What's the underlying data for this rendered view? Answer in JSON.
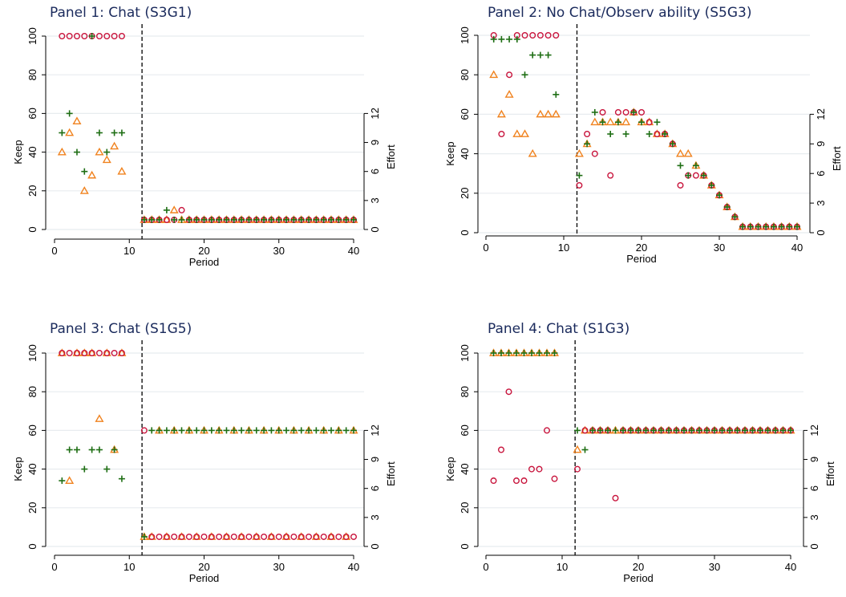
{
  "chart_data": [
    {
      "type": "scatter",
      "title": "Panel 1: Chat (S3G1)",
      "xlabel": "Period",
      "ylabel_left": "Keep",
      "ylabel_right": "Effort",
      "xlim": [
        0,
        40
      ],
      "ylim_left": [
        0,
        100
      ],
      "ylim_right": [
        0,
        12
      ],
      "x_ticks": [
        0,
        10,
        20,
        30,
        40
      ],
      "y_ticks_left": [
        0,
        20,
        40,
        60,
        80,
        100
      ],
      "y_ticks_right": [
        0,
        3,
        6,
        9,
        12
      ],
      "grid": true,
      "vline_x": 11.7,
      "series": [
        {
          "marker": "circle",
          "color": "#c8143c",
          "x": [
            1,
            2,
            3,
            4,
            5,
            6,
            7,
            8,
            9,
            12,
            13,
            14,
            15,
            16,
            17,
            18,
            19,
            20,
            21,
            22,
            23,
            24,
            25,
            26,
            27,
            28,
            29,
            30,
            31,
            32,
            33,
            34,
            35,
            36,
            37,
            38,
            39,
            40
          ],
          "y": [
            100,
            100,
            100,
            100,
            100,
            100,
            100,
            100,
            100,
            5,
            5,
            5,
            5,
            5,
            10,
            5,
            5,
            5,
            5,
            5,
            5,
            5,
            5,
            5,
            5,
            5,
            5,
            5,
            5,
            5,
            5,
            5,
            5,
            5,
            5,
            5,
            5,
            5
          ]
        },
        {
          "marker": "plus",
          "color": "#1e6e14",
          "x": [
            1,
            2,
            3,
            4,
            5,
            6,
            7,
            8,
            9,
            12,
            13,
            14,
            15,
            16,
            17,
            18,
            19,
            20,
            21,
            22,
            23,
            24,
            25,
            26,
            27,
            28,
            29,
            30,
            31,
            32,
            33,
            34,
            35,
            36,
            37,
            38,
            39,
            40
          ],
          "y": [
            50,
            60,
            40,
            30,
            100,
            50,
            40,
            50,
            50,
            5,
            5,
            5,
            10,
            5,
            5,
            5,
            5,
            5,
            5,
            5,
            5,
            5,
            5,
            5,
            5,
            5,
            5,
            5,
            5,
            5,
            5,
            5,
            5,
            5,
            5,
            5,
            5,
            5
          ]
        },
        {
          "marker": "triangle",
          "color": "#f0821e",
          "x": [
            1,
            2,
            3,
            4,
            5,
            6,
            7,
            8,
            9,
            12,
            13,
            14,
            15,
            16,
            17,
            18,
            19,
            20,
            21,
            22,
            23,
            24,
            25,
            26,
            27,
            28,
            29,
            30,
            31,
            32,
            33,
            34,
            35,
            36,
            37,
            38,
            39,
            40
          ],
          "y": [
            40,
            50,
            56,
            20,
            28,
            40,
            36,
            43,
            30,
            5,
            5,
            5,
            5,
            10,
            5,
            5,
            5,
            5,
            5,
            5,
            5,
            5,
            5,
            5,
            5,
            5,
            5,
            5,
            5,
            5,
            5,
            5,
            5,
            5,
            5,
            5,
            5,
            5
          ]
        }
      ]
    },
    {
      "type": "scatter",
      "title": "Panel 2: No Chat/Observ ability  (S5G3)",
      "xlabel": "Period",
      "ylabel_left": "Keep",
      "ylabel_right": "Effort",
      "xlim": [
        0,
        40
      ],
      "ylim_left": [
        0,
        100
      ],
      "ylim_right": [
        0,
        12
      ],
      "x_ticks": [
        0,
        10,
        20,
        30,
        40
      ],
      "y_ticks_left": [
        0,
        20,
        40,
        60,
        80,
        100
      ],
      "y_ticks_right": [
        0,
        3,
        6,
        9,
        12
      ],
      "grid": true,
      "vline_x": 11.7,
      "series": [
        {
          "marker": "circle",
          "color": "#c8143c",
          "x": [
            1,
            2,
            3,
            4,
            5,
            6,
            7,
            8,
            9,
            12,
            13,
            14,
            15,
            16,
            17,
            18,
            19,
            20,
            21,
            22,
            23,
            24,
            25,
            26,
            27,
            28,
            29,
            30,
            31,
            32,
            33,
            34,
            35,
            36,
            37,
            38,
            39,
            40
          ],
          "y": [
            100,
            50,
            80,
            100,
            100,
            100,
            100,
            100,
            100,
            24,
            50,
            40,
            61,
            29,
            61,
            61,
            61,
            61,
            56,
            50,
            50,
            45,
            24,
            29,
            29,
            29,
            24,
            19,
            13,
            8,
            3,
            3,
            3,
            3,
            3,
            3,
            3,
            3
          ]
        },
        {
          "marker": "plus",
          "color": "#1e6e14",
          "x": [
            1,
            2,
            3,
            4,
            5,
            6,
            7,
            8,
            9,
            12,
            13,
            14,
            15,
            16,
            17,
            18,
            19,
            20,
            21,
            22,
            23,
            24,
            25,
            26,
            27,
            28,
            29,
            30,
            31,
            32,
            33,
            34,
            35,
            36,
            37,
            38,
            39,
            40
          ],
          "y": [
            98,
            98,
            98,
            98,
            80,
            90,
            90,
            90,
            70,
            29,
            45,
            61,
            56,
            50,
            56,
            50,
            61,
            56,
            50,
            56,
            50,
            45,
            34,
            29,
            34,
            29,
            24,
            19,
            13,
            8,
            3,
            3,
            3,
            3,
            3,
            3,
            3,
            3
          ]
        },
        {
          "marker": "triangle",
          "color": "#f0821e",
          "x": [
            1,
            2,
            3,
            4,
            5,
            6,
            7,
            8,
            9,
            12,
            13,
            14,
            15,
            16,
            17,
            18,
            19,
            20,
            21,
            22,
            23,
            24,
            25,
            26,
            27,
            28,
            29,
            30,
            31,
            32,
            33,
            34,
            35,
            36,
            37,
            38,
            39,
            40
          ],
          "y": [
            80,
            60,
            70,
            50,
            50,
            40,
            60,
            60,
            60,
            40,
            45,
            56,
            56,
            56,
            56,
            56,
            61,
            56,
            56,
            50,
            50,
            45,
            40,
            40,
            34,
            29,
            24,
            19,
            13,
            8,
            3,
            3,
            3,
            3,
            3,
            3,
            3,
            3
          ]
        }
      ]
    },
    {
      "type": "scatter",
      "title": "Panel 3: Chat (S1G5)",
      "xlabel": "Period",
      "ylabel_left": "Keep",
      "ylabel_right": "Effort",
      "xlim": [
        0,
        40
      ],
      "ylim_left": [
        0,
        100
      ],
      "ylim_right": [
        0,
        12
      ],
      "x_ticks": [
        0,
        10,
        20,
        30,
        40
      ],
      "y_ticks_left": [
        0,
        20,
        40,
        60,
        80,
        100
      ],
      "y_ticks_right": [
        0,
        3,
        6,
        9,
        12
      ],
      "grid": true,
      "vline_x": 11.7,
      "series": [
        {
          "marker": "circle",
          "color": "#c8143c",
          "x": [
            1,
            2,
            3,
            4,
            5,
            6,
            7,
            8,
            9,
            12,
            13,
            14,
            15,
            16,
            17,
            18,
            19,
            20,
            21,
            22,
            23,
            24,
            25,
            26,
            27,
            28,
            29,
            30,
            31,
            32,
            33,
            34,
            35,
            36,
            37,
            38,
            39,
            40
          ],
          "y": [
            100,
            100,
            100,
            100,
            100,
            100,
            100,
            100,
            100,
            60,
            5,
            5,
            5,
            5,
            5,
            5,
            5,
            5,
            5,
            5,
            5,
            5,
            5,
            5,
            5,
            5,
            5,
            5,
            5,
            5,
            5,
            5,
            5,
            5,
            5,
            5,
            5,
            5
          ]
        },
        {
          "marker": "plus",
          "color": "#1e6e14",
          "x": [
            1,
            2,
            3,
            4,
            5,
            6,
            7,
            8,
            9,
            12,
            13,
            14,
            15,
            16,
            17,
            18,
            19,
            20,
            21,
            22,
            23,
            24,
            25,
            26,
            27,
            28,
            29,
            30,
            31,
            32,
            33,
            34,
            35,
            36,
            37,
            38,
            39,
            40
          ],
          "y": [
            34,
            50,
            50,
            40,
            50,
            50,
            40,
            50,
            35,
            5,
            60,
            60,
            60,
            60,
            60,
            60,
            60,
            60,
            60,
            60,
            60,
            60,
            60,
            60,
            60,
            60,
            60,
            60,
            60,
            60,
            60,
            60,
            60,
            60,
            60,
            60,
            60,
            60
          ]
        },
        {
          "marker": "triangle",
          "color": "#f0821e",
          "x": [
            1,
            2,
            3,
            4,
            5,
            6,
            7,
            8,
            9,
            12,
            13,
            14,
            15,
            16,
            17,
            18,
            19,
            20,
            21,
            22,
            23,
            24,
            25,
            26,
            27,
            28,
            29,
            30,
            31,
            32,
            33,
            34,
            35,
            36,
            37,
            38,
            39,
            40
          ],
          "y": [
            100,
            34,
            100,
            100,
            100,
            66,
            100,
            50,
            100,
            5,
            5,
            60,
            5,
            60,
            5,
            60,
            5,
            60,
            5,
            60,
            5,
            60,
            5,
            60,
            5,
            60,
            5,
            60,
            5,
            60,
            5,
            60,
            5,
            60,
            5,
            60,
            5,
            60
          ]
        }
      ]
    },
    {
      "type": "scatter",
      "title": "Panel 4:  Chat (S1G3)",
      "xlabel": "Period",
      "ylabel_left": "Keep",
      "ylabel_right": "Effort",
      "xlim": [
        0,
        40
      ],
      "ylim_left": [
        0,
        100
      ],
      "ylim_right": [
        0,
        12
      ],
      "x_ticks": [
        0,
        10,
        20,
        30,
        40
      ],
      "y_ticks_left": [
        0,
        20,
        40,
        60,
        80,
        100
      ],
      "y_ticks_right": [
        0,
        3,
        6,
        9,
        12
      ],
      "grid": true,
      "vline_x": 11.7,
      "series": [
        {
          "marker": "circle",
          "color": "#c8143c",
          "x": [
            1,
            2,
            3,
            4,
            5,
            6,
            7,
            8,
            9,
            12,
            13,
            14,
            15,
            16,
            17,
            18,
            19,
            20,
            21,
            22,
            23,
            24,
            25,
            26,
            27,
            28,
            29,
            30,
            31,
            32,
            33,
            34,
            35,
            36,
            37,
            38,
            39,
            40
          ],
          "y": [
            34,
            50,
            80,
            34,
            34,
            40,
            40,
            60,
            35,
            40,
            60,
            60,
            60,
            60,
            25,
            60,
            60,
            60,
            60,
            60,
            60,
            60,
            60,
            60,
            60,
            60,
            60,
            60,
            60,
            60,
            60,
            60,
            60,
            60,
            60,
            60,
            60,
            60
          ]
        },
        {
          "marker": "plus",
          "color": "#1e6e14",
          "x": [
            1,
            2,
            3,
            4,
            5,
            6,
            7,
            8,
            9,
            12,
            13,
            14,
            15,
            16,
            17,
            18,
            19,
            20,
            21,
            22,
            23,
            24,
            25,
            26,
            27,
            28,
            29,
            30,
            31,
            32,
            33,
            34,
            35,
            36,
            37,
            38,
            39,
            40
          ],
          "y": [
            100,
            100,
            100,
            100,
            100,
            100,
            100,
            100,
            100,
            60,
            50,
            60,
            60,
            60,
            60,
            60,
            60,
            60,
            60,
            60,
            60,
            60,
            60,
            60,
            60,
            60,
            60,
            60,
            60,
            60,
            60,
            60,
            60,
            60,
            60,
            60,
            60,
            60
          ]
        },
        {
          "marker": "triangle",
          "color": "#f0821e",
          "x": [
            1,
            2,
            3,
            4,
            5,
            6,
            7,
            8,
            9,
            12,
            13,
            14,
            15,
            16,
            17,
            18,
            19,
            20,
            21,
            22,
            23,
            24,
            25,
            26,
            27,
            28,
            29,
            30,
            31,
            32,
            33,
            34,
            35,
            36,
            37,
            38,
            39,
            40
          ],
          "y": [
            100,
            100,
            100,
            100,
            100,
            100,
            100,
            100,
            100,
            50,
            60,
            60,
            60,
            60,
            60,
            60,
            60,
            60,
            60,
            60,
            60,
            60,
            60,
            60,
            60,
            60,
            60,
            60,
            60,
            60,
            60,
            60,
            60,
            60,
            60,
            60,
            60,
            60
          ]
        }
      ]
    }
  ]
}
